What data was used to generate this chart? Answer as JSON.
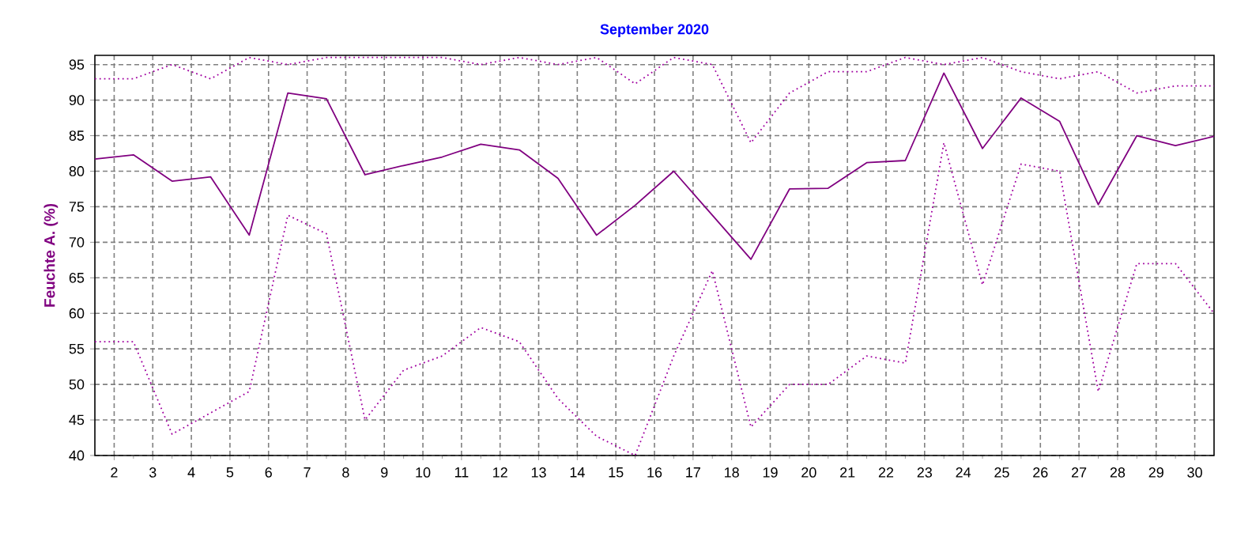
{
  "chart_data": {
    "type": "line",
    "title": "September 2020",
    "ylabel": "Feuchte A. (%)",
    "x": [
      1.5,
      2.5,
      3.5,
      4.5,
      5.5,
      6.5,
      7.5,
      8.5,
      9.5,
      10.5,
      11.5,
      12.5,
      13.5,
      14.5,
      15.5,
      16.5,
      17.5,
      18.5,
      19.5,
      20.5,
      21.5,
      22.5,
      23.5,
      24.5,
      25.5,
      26.5,
      27.5,
      28.5,
      29.5,
      30.5
    ],
    "series": [
      {
        "color": "#800080",
        "line_style": "solid",
        "values": [
          81.7,
          82.3,
          78.6,
          79.2,
          71,
          91,
          90.2,
          79.5,
          80.8,
          82,
          83.8,
          83,
          79,
          71,
          75.2,
          80,
          73.8,
          67.6,
          77.5,
          77.6,
          81.2,
          81.5,
          93.8,
          83.2,
          90.3,
          87,
          75.3,
          85,
          83.6,
          84.9
        ]
      },
      {
        "color": "#a000a0",
        "line_style": "dotted",
        "values": [
          93,
          93,
          95,
          93,
          96,
          95,
          96,
          96,
          96,
          96,
          95,
          96,
          95,
          96,
          92.3,
          96,
          95,
          84,
          91,
          94,
          94,
          96,
          95,
          96,
          94,
          93,
          94,
          91,
          92,
          92
        ]
      },
      {
        "color": "#a000a0",
        "line_style": "dotted",
        "values": [
          56,
          56,
          43,
          46,
          49,
          73.8,
          71.2,
          45,
          52,
          54,
          58,
          56,
          48,
          42.7,
          40,
          54,
          66,
          44,
          50,
          50,
          54,
          53,
          84,
          64,
          81,
          80,
          49,
          67,
          67,
          60
        ]
      }
    ],
    "xlim": [
      1.5,
      30.5
    ],
    "ylim": [
      40,
      96.3
    ],
    "xticks": [
      2,
      3,
      4,
      5,
      6,
      7,
      8,
      9,
      10,
      11,
      12,
      13,
      14,
      15,
      16,
      17,
      18,
      19,
      20,
      21,
      22,
      23,
      24,
      25,
      26,
      27,
      28,
      29,
      30
    ],
    "yticks": [
      40,
      45,
      50,
      55,
      60,
      65,
      70,
      75,
      80,
      85,
      90,
      95
    ],
    "grid": true
  }
}
